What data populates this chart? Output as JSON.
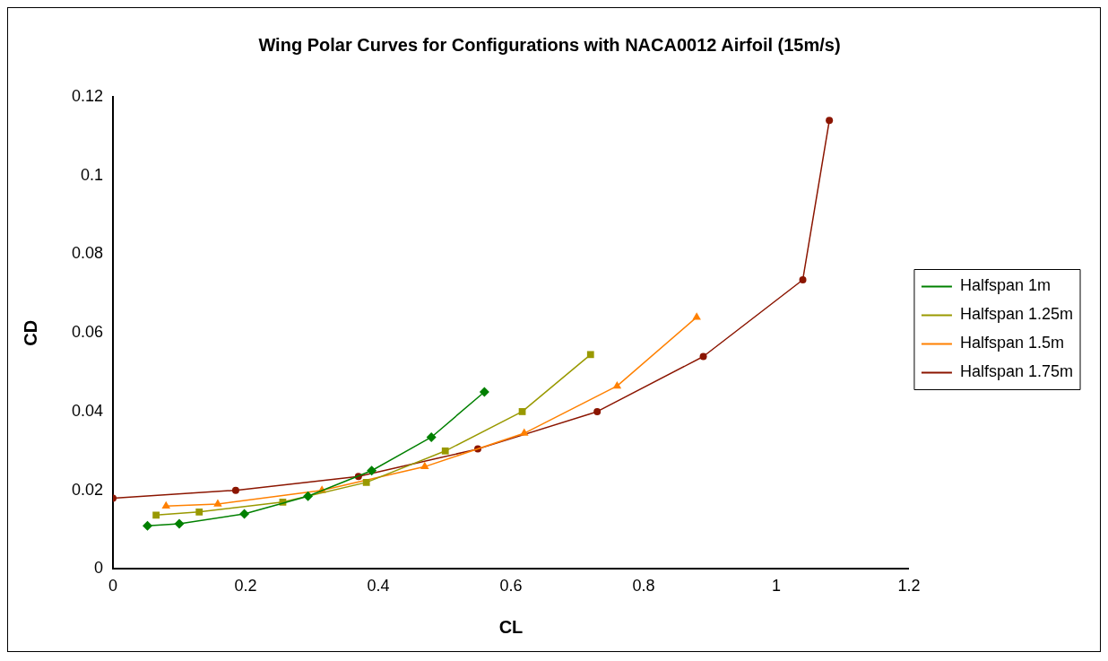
{
  "chart_data": {
    "type": "line",
    "title": "Wing Polar Curves for Configurations with NACA0012 Airfoil (15m/s)",
    "xlabel": "CL",
    "ylabel": "CD",
    "xlim": [
      0,
      1.2
    ],
    "xticks": [
      0,
      0.2,
      0.4,
      0.6,
      0.8,
      1,
      1.2
    ],
    "ylim": [
      0,
      0.12
    ],
    "yticks": [
      0,
      0.02,
      0.04,
      0.06,
      0.08,
      0.1,
      0.12
    ],
    "grid": false,
    "legend": "right",
    "series": [
      {
        "name": "Halfspan 1m",
        "color": "#008000",
        "marker": "diamond",
        "x": [
          0.052,
          0.1,
          0.198,
          0.294,
          0.39,
          0.48,
          0.56
        ],
        "values": [
          0.011,
          0.0115,
          0.014,
          0.0185,
          0.025,
          0.0335,
          0.045
        ]
      },
      {
        "name": "Halfspan 1.25m",
        "color": "#999900",
        "marker": "square",
        "x": [
          0.065,
          0.13,
          0.256,
          0.382,
          0.501,
          0.617,
          0.72
        ],
        "values": [
          0.0137,
          0.0145,
          0.017,
          0.022,
          0.03,
          0.04,
          0.0545
        ]
      },
      {
        "name": "Halfspan 1.5m",
        "color": "#ff8000",
        "marker": "triangle",
        "x": [
          0.08,
          0.158,
          0.315,
          0.47,
          0.62,
          0.76,
          0.88
        ],
        "values": [
          0.016,
          0.0165,
          0.02,
          0.026,
          0.0345,
          0.0465,
          0.064
        ]
      },
      {
        "name": "Halfspan 1.75m",
        "color": "#8b1500",
        "marker": "circle",
        "x": [
          0,
          0.185,
          0.37,
          0.55,
          0.73,
          0.89,
          1.04,
          1.08
        ],
        "values": [
          0.018,
          0.02,
          0.0235,
          0.0305,
          0.04,
          0.054,
          0.0735,
          0.114
        ]
      }
    ]
  }
}
